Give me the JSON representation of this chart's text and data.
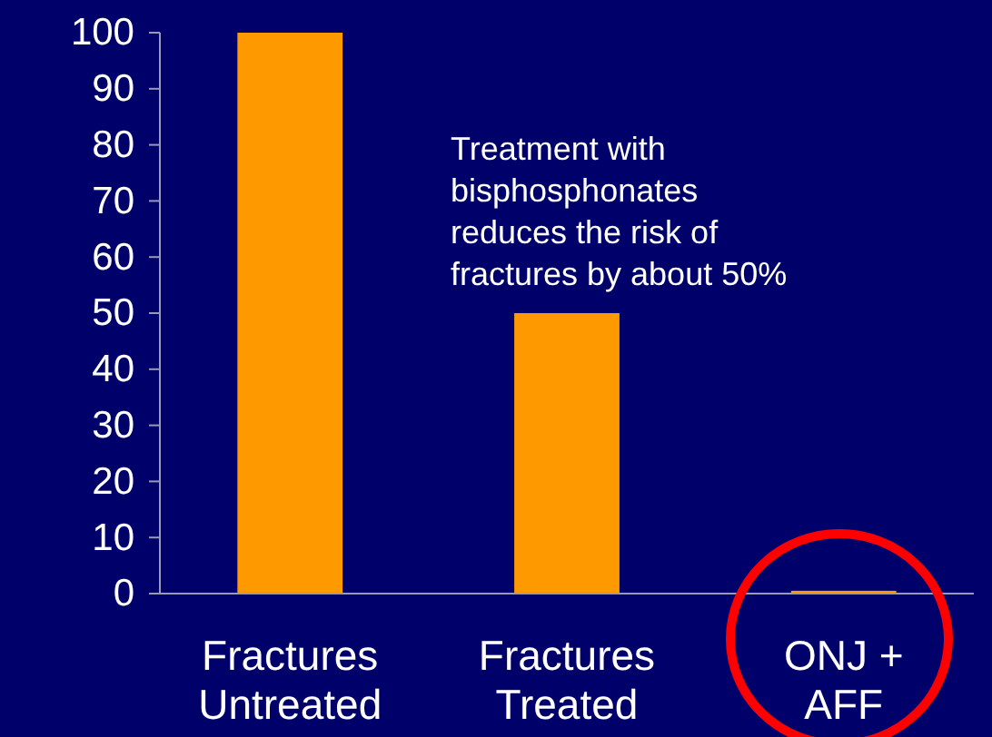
{
  "chart_data": {
    "type": "bar",
    "categories": [
      "Fractures\nUntreated",
      "Fractures\nTreated",
      "ONJ +\nAFF"
    ],
    "values": [
      100,
      50,
      0.5
    ],
    "color": "#ff9900",
    "ylim": [
      0,
      100
    ],
    "yticks": [
      0,
      10,
      20,
      30,
      40,
      50,
      60,
      70,
      80,
      90,
      100
    ],
    "annotations": [
      "Treatment with\nbisphosphonates\nreduces the risk of\nfractures by about 50%"
    ]
  }
}
